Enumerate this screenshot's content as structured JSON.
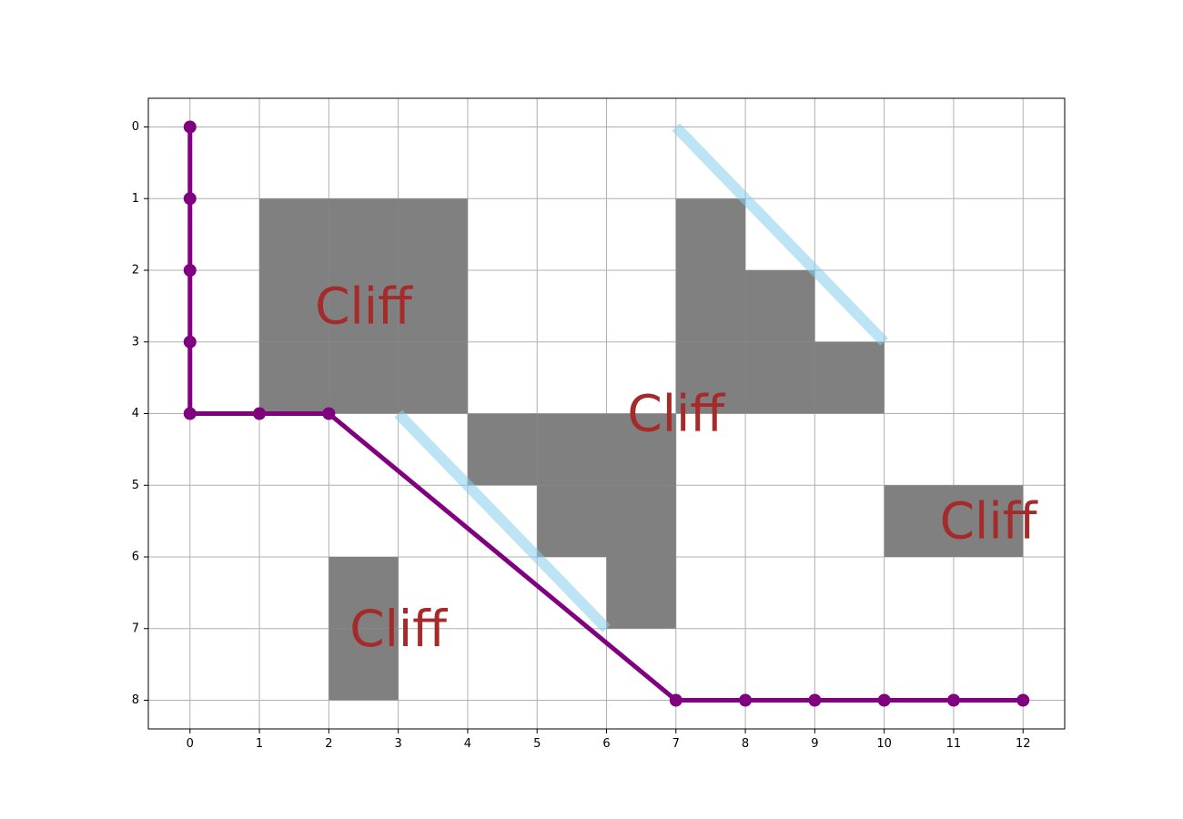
{
  "chart_data": {
    "type": "grid-path",
    "title": "",
    "xlabel": "",
    "ylabel": "",
    "x_ticks": [
      "0",
      "1",
      "2",
      "3",
      "4",
      "5",
      "6",
      "7",
      "8",
      "9",
      "10",
      "11",
      "12"
    ],
    "y_ticks": [
      "0",
      "1",
      "2",
      "3",
      "4",
      "5",
      "6",
      "7",
      "8"
    ],
    "xlim": [
      -0.6,
      12.6
    ],
    "ylim": [
      8.4,
      -0.4
    ],
    "y_inverted": true,
    "grid": true,
    "cliff_cells": [
      [
        1,
        1
      ],
      [
        2,
        1
      ],
      [
        3,
        1
      ],
      [
        1,
        2
      ],
      [
        2,
        2
      ],
      [
        3,
        2
      ],
      [
        1,
        3
      ],
      [
        2,
        3
      ],
      [
        3,
        3
      ],
      [
        7,
        1
      ],
      [
        7,
        2
      ],
      [
        8,
        2
      ],
      [
        7,
        3
      ],
      [
        8,
        3
      ],
      [
        9,
        3
      ],
      [
        4,
        4
      ],
      [
        5,
        4
      ],
      [
        6,
        4
      ],
      [
        5,
        5
      ],
      [
        6,
        5
      ],
      [
        6,
        6
      ],
      [
        2,
        6
      ],
      [
        2,
        7
      ],
      [
        10,
        5
      ],
      [
        11,
        5
      ]
    ],
    "cliff_color": "#808080",
    "cliff_labels": [
      {
        "text": "Cliff",
        "x": 2.5,
        "y": 2.5
      },
      {
        "text": "Cliff",
        "x": 7.0,
        "y": 4.0
      },
      {
        "text": "Cliff",
        "x": 11.5,
        "y": 5.5
      },
      {
        "text": "Cliff",
        "x": 3.0,
        "y": 7.0
      }
    ],
    "cliff_label_color": "#a52a2a",
    "path": {
      "color": "#800080",
      "points": [
        [
          0,
          0
        ],
        [
          0,
          1
        ],
        [
          0,
          2
        ],
        [
          0,
          3
        ],
        [
          0,
          4
        ],
        [
          1,
          4
        ],
        [
          2,
          4
        ],
        [
          7,
          8
        ],
        [
          8,
          8
        ],
        [
          9,
          8
        ],
        [
          10,
          8
        ],
        [
          11,
          8
        ],
        [
          12,
          8
        ]
      ]
    },
    "highlight_lines": {
      "color": "#87ceeb",
      "segments": [
        [
          [
            7,
            0
          ],
          [
            10,
            3
          ]
        ],
        [
          [
            3,
            4
          ],
          [
            6,
            7
          ]
        ]
      ]
    }
  }
}
